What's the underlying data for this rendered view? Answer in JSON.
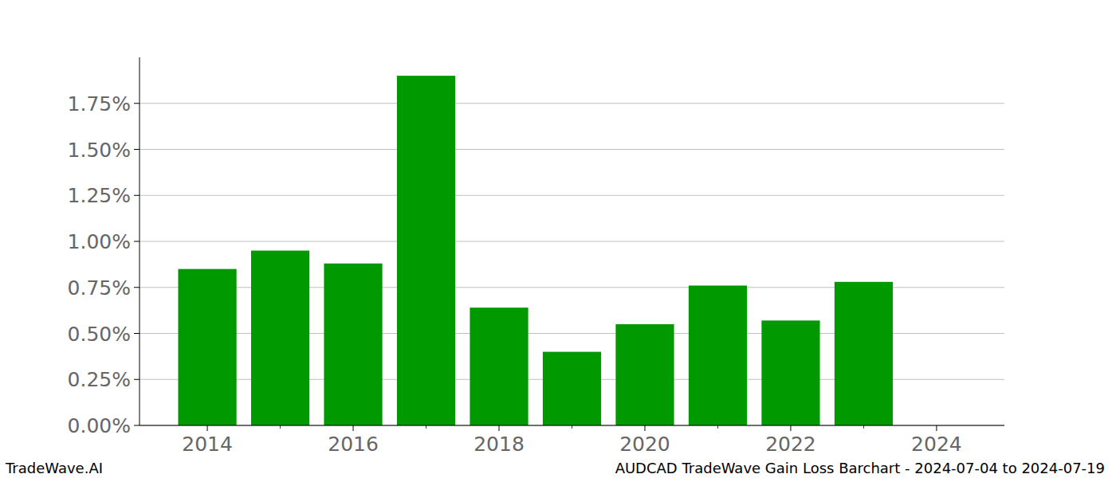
{
  "chart_data": {
    "type": "bar",
    "title": "AUDCAD TradeWave Gain Loss Barchart - 2024-07-04 to 2024-07-19",
    "annotations": [
      "TradeWave.AI"
    ],
    "x": [
      2014,
      2015,
      2016,
      2017,
      2018,
      2019,
      2020,
      2021,
      2022,
      2023
    ],
    "values": [
      0.85,
      0.95,
      0.88,
      1.9,
      0.64,
      0.4,
      0.55,
      0.76,
      0.57,
      0.78
    ],
    "color": "#009900",
    "xlim": [
      2013.07,
      2024.93
    ],
    "xticks": [
      2014,
      2016,
      2018,
      2020,
      2022,
      2024
    ],
    "ylim": [
      0,
      2.0
    ],
    "yticks": [
      {
        "value": 0,
        "label": "0.00%"
      },
      {
        "value": 0.25,
        "label": "0.25%"
      },
      {
        "value": 0.5,
        "label": "0.50%"
      },
      {
        "value": 0.75,
        "label": "0.75%"
      },
      {
        "value": 1.0,
        "label": "1.00%"
      },
      {
        "value": 1.25,
        "label": "1.25%"
      },
      {
        "value": 1.5,
        "label": "1.50%"
      },
      {
        "value": 1.75,
        "label": "1.75%"
      }
    ],
    "grid": true
  }
}
